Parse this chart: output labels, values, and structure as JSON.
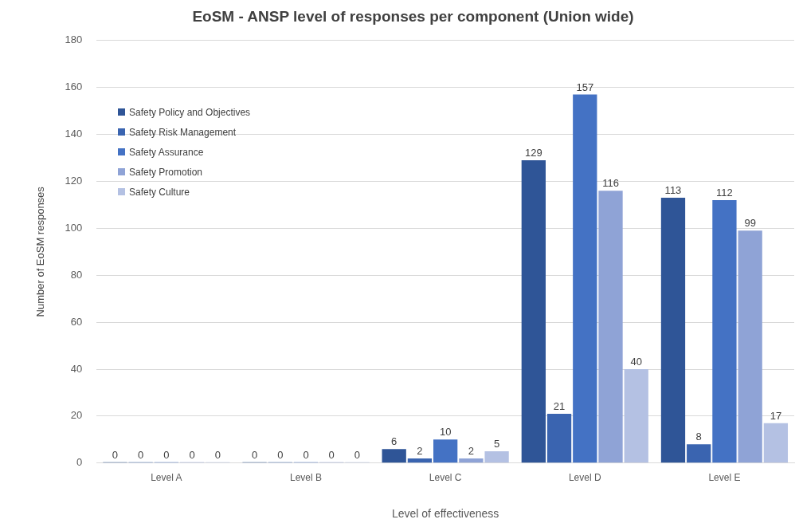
{
  "chart_data": {
    "type": "bar",
    "title": "EoSM - ANSP level of responses per component (Union wide)",
    "xlabel": "Level of effectiveness",
    "ylabel": "Number of EoSM responses",
    "categories": [
      "Level A",
      "Level B",
      "Level C",
      "Level D",
      "Level E"
    ],
    "series": [
      {
        "name": "Safety Policy and Objectives",
        "color": "#2f5597",
        "values": [
          0,
          0,
          6,
          129,
          113
        ]
      },
      {
        "name": "Safety Risk Management",
        "color": "#3a64b0",
        "values": [
          0,
          0,
          2,
          21,
          8
        ]
      },
      {
        "name": "Safety Assurance",
        "color": "#4472c4",
        "values": [
          0,
          0,
          10,
          157,
          112
        ]
      },
      {
        "name": "Safety Promotion",
        "color": "#8fa3d6",
        "values": [
          0,
          0,
          2,
          116,
          99
        ]
      },
      {
        "name": "Safety Culture",
        "color": "#b4c1e3",
        "values": [
          0,
          0,
          5,
          40,
          17
        ]
      }
    ],
    "ylim": [
      0,
      180
    ],
    "yticks": [
      0,
      20,
      40,
      60,
      80,
      100,
      120,
      140,
      160,
      180
    ],
    "grid": "y",
    "legend": "top left",
    "data_labels": true
  }
}
